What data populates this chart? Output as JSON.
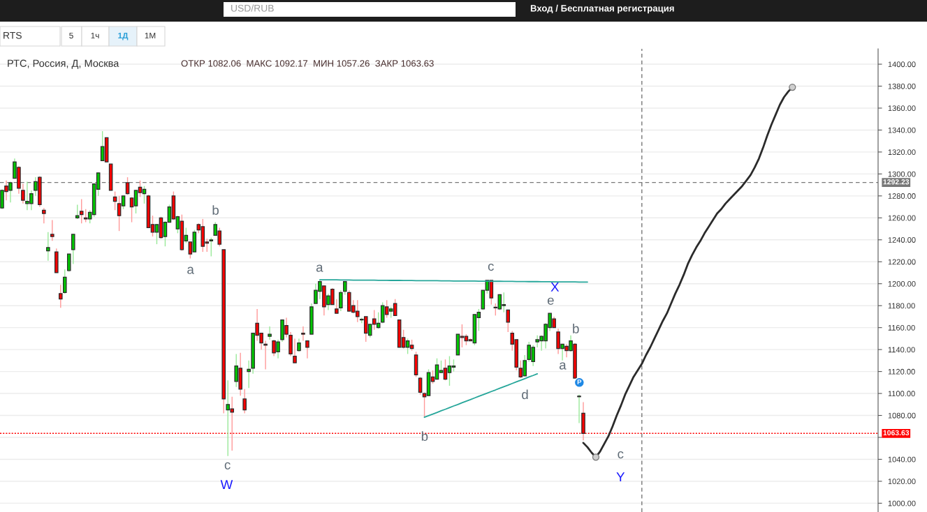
{
  "chart_data": {
    "type": "candlestick",
    "title": "РТС, Россия, Д, Москва",
    "subtitle": "ОТКР 1082.06  МАКС 1092.17  МИН 1057.26  ЗАКР 1063.63",
    "categories": [
      null,
      null,
      null,
      null,
      null,
      null,
      null,
      null,
      null,
      null,
      null,
      null,
      null,
      null,
      null,
      null,
      null,
      null,
      null,
      null,
      null,
      null,
      null,
      null,
      null,
      null,
      null,
      null,
      null,
      null,
      null,
      null,
      null,
      null,
      null,
      null,
      null,
      null,
      null,
      null,
      null,
      null,
      null,
      null,
      null,
      null,
      null,
      null,
      null,
      null,
      null,
      null,
      null,
      null,
      null,
      null,
      null,
      null,
      null,
      null,
      null,
      null,
      null,
      null,
      null,
      null,
      null,
      null,
      null,
      null,
      null,
      null,
      null,
      null,
      null,
      null,
      null,
      null,
      null,
      null,
      null,
      null,
      null,
      null,
      null,
      null,
      null,
      null,
      null,
      null,
      null,
      null,
      null,
      null,
      null,
      null,
      null,
      null,
      null,
      null,
      null,
      null,
      null,
      null,
      null,
      null,
      null,
      null,
      null,
      null,
      null,
      null,
      null,
      null,
      null,
      null,
      null,
      null,
      null,
      null,
      null,
      null,
      null,
      null,
      null,
      null,
      null,
      null,
      null,
      null,
      null,
      null,
      null,
      null,
      null,
      null,
      null,
      null,
      null,
      null,
      null,
      null,
      null,
      null,
      null,
      null,
      null,
      null,
      null,
      null,
      null,
      null,
      null,
      null,
      null,
      null,
      null,
      null,
      null,
      null,
      null,
      null,
      null,
      null,
      null,
      null,
      null,
      null,
      null,
      null,
      null,
      null,
      null,
      null,
      null,
      null,
      null,
      null,
      null,
      null,
      null,
      null,
      null,
      null,
      null,
      null,
      null,
      null,
      null,
      null,
      null,
      null,
      null,
      null,
      null,
      null,
      null,
      null,
      null,
      null,
      null,
      null,
      null,
      null,
      null,
      null,
      null,
      null,
      null,
      null
    ],
    "ohlc": [
      [
        1269,
        1286,
        1268,
        1285
      ],
      [
        1289,
        1294,
        1276,
        1284
      ],
      [
        1285,
        1293,
        1274,
        1292
      ],
      [
        1296,
        1314,
        1296,
        1311
      ],
      [
        1306,
        1307,
        1282,
        1287
      ],
      [
        1285,
        1291,
        1273,
        1276
      ],
      [
        1273,
        1293,
        1267,
        1275
      ],
      [
        1273,
        1285,
        1267,
        1282
      ],
      [
        1285,
        1297,
        1280,
        1293
      ],
      [
        1297,
        1298,
        1270,
        1272
      ],
      [
        1267,
        1269,
        1255,
        1264
      ],
      [
        1230,
        1247,
        1221,
        1233
      ],
      [
        1245,
        1258,
        1239,
        1243
      ],
      [
        1229,
        1232,
        1210,
        1210
      ],
      [
        1191,
        1199,
        1178,
        1186
      ],
      [
        1192,
        1213,
        1191,
        1206
      ],
      [
        1212,
        1227,
        1211,
        1227
      ],
      [
        1231,
        1245,
        1218,
        1245
      ],
      [
        1260,
        1272,
        1259,
        1262
      ],
      [
        1266,
        1277,
        1255,
        1263
      ],
      [
        1260,
        1268,
        1256,
        1259
      ],
      [
        1259,
        1267,
        1255,
        1265
      ],
      [
        1263,
        1291,
        1261,
        1291
      ],
      [
        1286,
        1301,
        1280,
        1301
      ],
      [
        1312,
        1339,
        1312,
        1325
      ],
      [
        1333,
        1333,
        1311,
        1311
      ],
      [
        1309,
        1309,
        1285,
        1285
      ],
      [
        1279,
        1284,
        1267,
        1275
      ],
      [
        1273,
        1280,
        1248,
        1262
      ],
      [
        1271,
        1280,
        1268,
        1280
      ],
      [
        1292,
        1297,
        1281,
        1282
      ],
      [
        1278,
        1279,
        1256,
        1270
      ],
      [
        1271,
        1285,
        1264,
        1285
      ],
      [
        1288,
        1294,
        1279,
        1283
      ],
      [
        1282,
        1289,
        1273,
        1286
      ],
      [
        1280,
        1281,
        1251,
        1251
      ],
      [
        1254,
        1262,
        1243,
        1247
      ],
      [
        1247,
        1254,
        1236,
        1254
      ],
      [
        1260,
        1261,
        1241,
        1242
      ],
      [
        1243,
        1257,
        1234,
        1256
      ],
      [
        1256,
        1272,
        1256,
        1270
      ],
      [
        1280,
        1284,
        1258,
        1259
      ],
      [
        1250,
        1262,
        1246,
        1261
      ],
      [
        1257,
        1263,
        1230,
        1231
      ],
      [
        1239,
        1251,
        1237,
        1244
      ],
      [
        1238,
        1238,
        1223,
        1227
      ],
      [
        1229,
        1249,
        1229,
        1247
      ],
      [
        1254,
        1255,
        1246,
        1249
      ],
      [
        1252,
        1259,
        1229,
        1234
      ],
      [
        1238,
        1241,
        1229,
        1237
      ],
      [
        1239,
        1242,
        1225,
        1240
      ],
      [
        1244,
        1256,
        1244,
        1254
      ],
      [
        1248,
        1251,
        1234,
        1236
      ],
      [
        1231,
        1231,
        1082,
        1095
      ],
      [
        1085,
        1112,
        1043,
        1090
      ],
      [
        1086,
        1097,
        1048,
        1083
      ],
      [
        1111,
        1136,
        1106,
        1125
      ],
      [
        1123,
        1137,
        1098,
        1104
      ],
      [
        1095,
        1104,
        1082,
        1085
      ],
      [
        1120,
        1130,
        1105,
        1122
      ],
      [
        1123,
        1155,
        1118,
        1155
      ],
      [
        1164,
        1177,
        1148,
        1153
      ],
      [
        1155,
        1155,
        1140,
        1146
      ],
      [
        1145,
        1148,
        1122,
        1144
      ],
      [
        1152,
        1161,
        1149,
        1154
      ],
      [
        1148,
        1149,
        1134,
        1137
      ],
      [
        1138,
        1149,
        1132,
        1147
      ],
      [
        1149,
        1167,
        1147,
        1167
      ],
      [
        1162,
        1169,
        1151,
        1154
      ],
      [
        1153,
        1156,
        1134,
        1136
      ],
      [
        1134,
        1150,
        1128,
        1128
      ],
      [
        1139,
        1150,
        1138,
        1146
      ],
      [
        1155,
        1161,
        1148,
        1154
      ],
      [
        1148,
        1148,
        1132,
        1142
      ],
      [
        1154,
        1182,
        1154,
        1179
      ],
      [
        1182,
        1200,
        1182,
        1194
      ],
      [
        1193,
        1204,
        1186,
        1202
      ],
      [
        1198,
        1198,
        1171,
        1179
      ],
      [
        1181,
        1191,
        1176,
        1189
      ],
      [
        1195,
        1196,
        1181,
        1181
      ],
      [
        1177,
        1186,
        1173,
        1173
      ],
      [
        1178,
        1194,
        1175,
        1192
      ],
      [
        1193,
        1202,
        1190,
        1202
      ],
      [
        1192,
        1194,
        1175,
        1175
      ],
      [
        1180,
        1185,
        1173,
        1174
      ],
      [
        1175,
        1185,
        1165,
        1170
      ],
      [
        1167,
        1169,
        1164,
        1167
      ],
      [
        1170,
        1170,
        1147,
        1155
      ],
      [
        1153,
        1163,
        1151,
        1163
      ],
      [
        1168,
        1176,
        1158,
        1163
      ],
      [
        1160,
        1174,
        1159,
        1164
      ],
      [
        1165,
        1183,
        1164,
        1180
      ],
      [
        1179,
        1185,
        1169,
        1172
      ],
      [
        1175,
        1179,
        1169,
        1177
      ],
      [
        1182,
        1186,
        1171,
        1171
      ],
      [
        1167,
        1167,
        1142,
        1142
      ],
      [
        1151,
        1158,
        1141,
        1142
      ],
      [
        1142,
        1150,
        1136,
        1148
      ],
      [
        1144,
        1149,
        1139,
        1141
      ],
      [
        1135,
        1138,
        1115,
        1117
      ],
      [
        1114,
        1115,
        1099,
        1101
      ],
      [
        1100,
        1101,
        1078,
        1097
      ],
      [
        1098,
        1122,
        1098,
        1119
      ],
      [
        1115,
        1121,
        1109,
        1111
      ],
      [
        1113,
        1132,
        1113,
        1126
      ],
      [
        1119,
        1130,
        1119,
        1121
      ],
      [
        1123,
        1131,
        1112,
        1113
      ],
      [
        1119,
        1134,
        1107,
        1125
      ],
      [
        1124,
        1131,
        1120,
        1125
      ],
      [
        1135,
        1154,
        1135,
        1154
      ],
      [
        1152,
        1163,
        1142,
        1151
      ],
      [
        1152,
        1154,
        1144,
        1148
      ],
      [
        1149,
        1150,
        1148,
        1148
      ],
      [
        1146,
        1172,
        1144,
        1172
      ],
      [
        1169,
        1177,
        1157,
        1174
      ],
      [
        1177,
        1194,
        1176,
        1194
      ],
      [
        1194,
        1203,
        1191,
        1203
      ],
      [
        1203,
        1203,
        1181,
        1187
      ],
      [
        1178,
        1182,
        1171,
        1178
      ],
      [
        1177,
        1190,
        1176,
        1190
      ],
      [
        1180,
        1192,
        1174,
        1181
      ],
      [
        1176,
        1176,
        1156,
        1165
      ],
      [
        1155,
        1157,
        1139,
        1145
      ],
      [
        1149,
        1149,
        1121,
        1124
      ],
      [
        1123,
        1130,
        1114,
        1115
      ],
      [
        1116,
        1135,
        1116,
        1130
      ],
      [
        1131,
        1147,
        1129,
        1144
      ],
      [
        1129,
        1144,
        1125,
        1142
      ],
      [
        1147,
        1153,
        1142,
        1149
      ],
      [
        1148,
        1153,
        1139,
        1152
      ],
      [
        1148,
        1164,
        1141,
        1163
      ],
      [
        1160,
        1173,
        1157,
        1173
      ],
      [
        1168,
        1170,
        1160,
        1160
      ],
      [
        1156,
        1159,
        1136,
        1141
      ],
      [
        1141,
        1145,
        1130,
        1145
      ],
      [
        1143,
        1145,
        1133,
        1139
      ],
      [
        1139,
        1153,
        1138,
        1148
      ],
      [
        1145,
        1146,
        1114,
        1114
      ],
      [
        1097,
        1099,
        1073,
        1097
      ],
      [
        1082.06,
        1092.17,
        1057.26,
        1063.63
      ],
      null,
      null,
      null,
      null,
      null,
      null,
      null,
      null,
      null,
      null,
      null,
      null,
      null,
      null,
      null,
      null,
      null,
      null,
      null,
      null,
      null,
      null,
      null,
      null,
      null,
      null,
      null,
      null,
      null,
      null,
      null,
      null,
      null,
      null,
      null,
      null,
      null,
      null,
      null,
      null,
      null,
      null,
      null,
      null,
      null,
      null,
      null,
      null,
      null,
      null,
      null,
      null,
      null,
      null,
      null,
      null,
      null,
      null,
      null,
      null,
      null,
      null,
      null,
      null,
      null,
      null,
      null,
      null,
      null,
      null
    ],
    "colors": [
      "#00c800",
      "#ff0000",
      "#00c800",
      "#00c800",
      "#ff0000",
      "#ff0000",
      "#00c800",
      "#00c800",
      "#00c800",
      "#ff0000",
      "#ff0000",
      "#00c800",
      "#ff0000",
      "#ff0000",
      "#ff0000",
      "#00c800",
      "#00c800",
      "#00c800",
      "#00c800",
      "#ff0000",
      "#ff0000",
      "#00c800",
      "#00c800",
      "#00c800",
      "#00c800",
      "#ff0000",
      "#ff0000",
      "#ff0000",
      "#ff0000",
      "#00c800",
      "#ff0000",
      "#ff0000",
      "#00c800",
      "#ff0000",
      "#00c800",
      "#ff0000",
      "#ff0000",
      "#00c800",
      "#ff0000",
      "#00c800",
      "#00c800",
      "#ff0000",
      "#00c800",
      "#ff0000",
      "#00c800",
      "#ff0000",
      "#00c800",
      "#ff0000",
      "#ff0000",
      "#ff0000",
      "#00c800",
      "#00c800",
      "#ff0000",
      "#ff0000",
      "#00c800",
      "#ff0000",
      "#00c800",
      "#ff0000",
      "#ff0000",
      "#00c800",
      "#00c800",
      "#ff0000",
      "#ff0000",
      "#ff0000",
      "#00c800",
      "#ff0000",
      "#00c800",
      "#00c800",
      "#ff0000",
      "#ff0000",
      "#ff0000",
      "#00c800",
      "#ff0000",
      "#ff0000",
      "#00c800",
      "#00c800",
      "#00c800",
      "#ff0000",
      "#00c800",
      "#ff0000",
      "#ff0000",
      "#00c800",
      "#00c800",
      "#ff0000",
      "#ff0000",
      "#ff0000",
      "#00c800",
      "#ff0000",
      "#00c800",
      "#ff0000",
      "#00c800",
      "#00c800",
      "#ff0000",
      "#00c800",
      "#ff0000",
      "#ff0000",
      "#ff0000",
      "#00c800",
      "#ff0000",
      "#ff0000",
      "#ff0000",
      "#ff0000",
      "#00c800",
      "#ff0000",
      "#00c800",
      "#00c800",
      "#ff0000",
      "#00c800",
      "#00c800",
      "#00c800",
      "#ff0000",
      "#ff0000",
      "#ff0000",
      "#00c800",
      "#00c800",
      "#00c800",
      "#00c800",
      "#ff0000",
      "#ff0000",
      "#00c800",
      "#00c800",
      "#ff0000",
      "#ff0000",
      "#ff0000",
      "#ff0000",
      "#00c800",
      "#00c800",
      "#00c800",
      "#00c800",
      "#00c800",
      "#00c800",
      "#00c800",
      "#ff0000",
      "#ff0000",
      "#00c800",
      "#ff0000",
      "#00c800",
      "#ff0000",
      "#00c800",
      "#ff0000",
      null,
      null,
      null,
      null,
      null,
      null,
      null,
      null,
      null,
      null,
      null,
      null,
      null,
      null,
      null,
      null,
      null,
      null,
      null,
      null,
      null,
      null,
      null,
      null,
      null,
      null,
      null,
      null,
      null,
      null,
      null,
      null,
      null,
      null,
      null,
      null,
      null,
      null,
      null,
      null,
      null,
      null,
      null,
      null,
      null,
      null,
      null,
      null,
      null,
      null,
      null,
      null,
      null,
      null,
      null,
      null,
      null,
      null,
      null,
      null,
      null,
      null,
      null,
      null,
      null,
      null,
      null,
      null,
      null,
      null
    ],
    "series": [
      {
        "type": "line",
        "color": "#26a69a",
        "values": [
          null,
          null,
          null,
          null,
          null,
          null,
          null,
          null,
          null,
          null,
          null,
          null,
          null,
          null,
          null,
          null,
          null,
          null,
          null,
          null,
          null,
          null,
          null,
          null,
          null,
          null,
          null,
          null,
          null,
          null,
          null,
          null,
          null,
          null,
          null,
          null,
          null,
          null,
          null,
          null,
          null,
          null,
          null,
          null,
          null,
          null,
          null,
          null,
          null,
          null,
          null,
          null,
          null,
          null,
          null,
          null,
          null,
          null,
          null,
          null,
          null,
          null,
          null,
          null,
          null,
          null,
          null,
          null,
          null,
          null,
          null,
          null,
          null,
          null,
          null,
          null,
          1203.6,
          1203.6,
          1203.5,
          1203.5,
          1203.5,
          1203.4,
          1203.4,
          1203.4,
          1203.3,
          1203.3,
          1203.3,
          1203.2,
          1203.2,
          1203.2,
          1203.1,
          1203.1,
          1203.1,
          1203.0,
          1203.0,
          1203.0,
          1202.9,
          1202.9,
          1202.9,
          1202.8,
          1202.8,
          1202.8,
          1202.7,
          1202.7,
          1202.7,
          1202.6,
          1202.6,
          1202.6,
          1202.5,
          1202.5,
          1202.5,
          1202.4,
          1202.4,
          1202.4,
          1202.3,
          1202.3,
          1202.3,
          1202.2,
          1202.2,
          1202.2,
          1202.1,
          1202.1,
          1202.1,
          1202.0,
          1202.0,
          1202.0,
          1201.9,
          1201.9,
          1201.9,
          1201.8,
          1201.8,
          1201.8,
          1201.7,
          1201.7,
          1201.7,
          1201.6,
          1201.6,
          1201.6,
          1201.5,
          1201.5,
          1201.5,
          null,
          null,
          null,
          null,
          null,
          null,
          null,
          null,
          null,
          null,
          null,
          null,
          null,
          null,
          null,
          null,
          null,
          null,
          null,
          null,
          null,
          null,
          null,
          null,
          null,
          null,
          null,
          null,
          null,
          null,
          null,
          null,
          null,
          null,
          null,
          null,
          null,
          null,
          null,
          null,
          null,
          null,
          null,
          null,
          null,
          null,
          null,
          null,
          null,
          null,
          null,
          null,
          null,
          null,
          null,
          null,
          null,
          null,
          null,
          null,
          null,
          null,
          null,
          null,
          null,
          null,
          null,
          null,
          null
        ]
      },
      {
        "type": "line",
        "color": "#26a69a",
        "values": [
          null,
          null,
          null,
          null,
          null,
          null,
          null,
          null,
          null,
          null,
          null,
          null,
          null,
          null,
          null,
          null,
          null,
          null,
          null,
          null,
          null,
          null,
          null,
          null,
          null,
          null,
          null,
          null,
          null,
          null,
          null,
          null,
          null,
          null,
          null,
          null,
          null,
          null,
          null,
          null,
          null,
          null,
          null,
          null,
          null,
          null,
          null,
          null,
          null,
          null,
          null,
          null,
          null,
          null,
          null,
          null,
          null,
          null,
          null,
          null,
          null,
          null,
          null,
          null,
          null,
          null,
          null,
          null,
          null,
          null,
          null,
          null,
          null,
          null,
          null,
          null,
          null,
          null,
          null,
          null,
          null,
          null,
          null,
          null,
          null,
          null,
          null,
          null,
          null,
          null,
          null,
          null,
          null,
          null,
          null,
          null,
          null,
          null,
          null,
          null,
          null,
          1078.3,
          1079.8,
          1081.2,
          1082.7,
          1084.2,
          1085.6,
          1087.1,
          1088.6,
          1090.0,
          1091.5,
          1093.0,
          1094.4,
          1095.9,
          1097.4,
          1098.8,
          1100.3,
          1101.8,
          1103.2,
          1104.7,
          1106.2,
          1107.6,
          1109.1,
          1110.6,
          1112.0,
          1113.5,
          1115.0,
          1116.4,
          1117.9,
          null,
          null,
          null,
          null,
          null,
          null,
          null,
          null,
          null,
          null,
          null,
          null,
          null,
          null,
          null,
          null,
          null,
          null,
          null,
          null,
          null,
          null,
          null,
          null,
          null,
          null,
          null,
          null,
          null,
          null,
          null,
          null,
          null,
          null,
          null,
          null,
          null,
          null,
          null,
          null,
          null,
          null,
          null,
          null,
          null,
          null,
          null,
          null,
          null,
          null,
          null,
          null,
          null,
          null,
          null,
          null,
          null,
          null,
          null,
          null,
          null,
          null,
          null,
          null,
          null,
          null,
          null,
          null,
          null,
          null,
          null,
          null,
          null,
          null,
          null,
          null,
          null,
          null,
          null,
          null,
          null
        ]
      },
      {
        "type": "line",
        "color": "#2b2b2b",
        "values": [
          null,
          null,
          null,
          null,
          null,
          null,
          null,
          null,
          null,
          null,
          null,
          null,
          null,
          null,
          null,
          null,
          null,
          null,
          null,
          null,
          null,
          null,
          null,
          null,
          null,
          null,
          null,
          null,
          null,
          null,
          null,
          null,
          null,
          null,
          null,
          null,
          null,
          null,
          null,
          null,
          null,
          null,
          null,
          null,
          null,
          null,
          null,
          null,
          null,
          null,
          null,
          null,
          null,
          null,
          null,
          null,
          null,
          null,
          null,
          null,
          null,
          null,
          null,
          null,
          null,
          null,
          null,
          null,
          null,
          null,
          null,
          null,
          null,
          null,
          null,
          null,
          null,
          null,
          null,
          null,
          null,
          null,
          null,
          null,
          null,
          null,
          null,
          null,
          null,
          null,
          null,
          null,
          null,
          null,
          null,
          null,
          null,
          null,
          null,
          null,
          null,
          null,
          null,
          null,
          null,
          null,
          null,
          null,
          null,
          null,
          null,
          null,
          null,
          null,
          null,
          null,
          null,
          null,
          null,
          null,
          null,
          null,
          null,
          null,
          null,
          null,
          null,
          null,
          null,
          null,
          null,
          null,
          null,
          null,
          null,
          null,
          null,
          null,
          null,
          1055,
          1051,
          1046,
          1042,
          1047,
          1054,
          1061,
          1070,
          1080,
          1089,
          1099,
          1107,
          1115,
          1121,
          1127,
          1135,
          1142,
          1150,
          1158,
          1166,
          1173,
          1182,
          1191,
          1199,
          1208,
          1218,
          1226,
          1233,
          1239,
          1246,
          1252,
          1258,
          1264,
          1268,
          1273,
          1277,
          1281,
          1285,
          1289,
          1294,
          1299,
          1306,
          1314,
          1324,
          1335,
          1345,
          1354,
          1363,
          1370,
          1375,
          1379,
          null,
          null,
          null,
          null,
          null,
          null,
          null,
          null,
          null,
          null,
          null,
          null,
          null,
          null,
          null,
          null,
          null,
          null,
          null,
          null
        ]
      },
      {
        "type": "scatter",
        "color": "#cfcfcf",
        "marker": "circle",
        "values": [
          null,
          null,
          null,
          null,
          null,
          null,
          null,
          null,
          null,
          null,
          null,
          null,
          null,
          null,
          null,
          null,
          null,
          null,
          null,
          null,
          null,
          null,
          null,
          null,
          null,
          null,
          null,
          null,
          null,
          null,
          null,
          null,
          null,
          null,
          null,
          null,
          null,
          null,
          null,
          null,
          null,
          null,
          null,
          null,
          null,
          null,
          null,
          null,
          null,
          null,
          null,
          null,
          null,
          null,
          null,
          null,
          null,
          null,
          null,
          null,
          null,
          null,
          null,
          null,
          null,
          null,
          null,
          null,
          null,
          null,
          null,
          null,
          null,
          null,
          null,
          null,
          null,
          null,
          null,
          null,
          null,
          null,
          null,
          null,
          null,
          null,
          null,
          null,
          null,
          null,
          null,
          null,
          null,
          null,
          null,
          null,
          null,
          null,
          null,
          null,
          null,
          null,
          null,
          null,
          null,
          null,
          null,
          null,
          null,
          null,
          null,
          null,
          null,
          null,
          null,
          null,
          null,
          null,
          null,
          null,
          null,
          null,
          null,
          null,
          null,
          null,
          null,
          null,
          null,
          null,
          null,
          null,
          null,
          null,
          null,
          null,
          null,
          null,
          null,
          null,
          null,
          null,
          1042,
          null,
          null,
          null,
          null,
          null,
          null,
          null,
          null,
          null,
          null,
          null,
          null,
          null,
          null,
          null,
          null,
          null,
          null,
          null,
          null,
          null,
          null,
          null,
          null,
          null,
          null,
          null,
          null,
          null,
          null,
          null,
          null,
          null,
          null,
          null,
          null,
          null,
          null,
          null,
          null,
          null,
          null,
          null,
          null,
          null,
          null,
          1379,
          null,
          null,
          null,
          null,
          null,
          null,
          null,
          null,
          null,
          null,
          null,
          null,
          null,
          null,
          null,
          null,
          null,
          null,
          null,
          null
        ]
      }
    ],
    "ylim": [
      992,
      1414
    ],
    "yticks": [
      {
        "value": 1000,
        "label": "1000.00"
      },
      {
        "value": 1020,
        "label": "1020.00"
      },
      {
        "value": 1040,
        "label": "1040.00"
      },
      {
        "value": 1060,
        "label": null
      },
      {
        "value": 1080,
        "label": "1080.00"
      },
      {
        "value": 1100,
        "label": "1100.00"
      },
      {
        "value": 1120,
        "label": "1120.00"
      },
      {
        "value": 1140,
        "label": "1140.00"
      },
      {
        "value": 1160,
        "label": "1160.00"
      },
      {
        "value": 1180,
        "label": "1180.00"
      },
      {
        "value": 1200,
        "label": "1200.00"
      },
      {
        "value": 1220,
        "label": "1220.00"
      },
      {
        "value": 1240,
        "label": "1240.00"
      },
      {
        "value": 1260,
        "label": "1260.00"
      },
      {
        "value": 1280,
        "label": "1280.00"
      },
      {
        "value": 1300,
        "label": "1300.00"
      },
      {
        "value": 1320,
        "label": "1320.00"
      },
      {
        "value": 1340,
        "label": "1340.00"
      },
      {
        "value": 1360,
        "label": "1360.00"
      },
      {
        "value": 1380,
        "label": "1380.00"
      },
      {
        "value": 1400,
        "label": "1400.00"
      }
    ],
    "grid": "y",
    "tick_labels": "y",
    "ref_lines": [
      {
        "axis": "y",
        "value": 1292.23,
        "label": "1292.23",
        "color": "#777777",
        "line_style": "dashed"
      },
      {
        "axis": "y",
        "value": 1063.63,
        "label": "1063.63",
        "color": "#ff0000",
        "line_style": "dotted"
      }
    ],
    "annotations": [
      "RTS",
      "5",
      "1ч",
      "1Д",
      "1М",
      "USD/RUB",
      "Вход / Бесплатная регистрация",
      "b",
      "a",
      "c",
      "W",
      "a",
      "c",
      "X",
      "e",
      "b",
      "a",
      "d",
      "b",
      "c",
      "Y",
      "P"
    ]
  }
}
